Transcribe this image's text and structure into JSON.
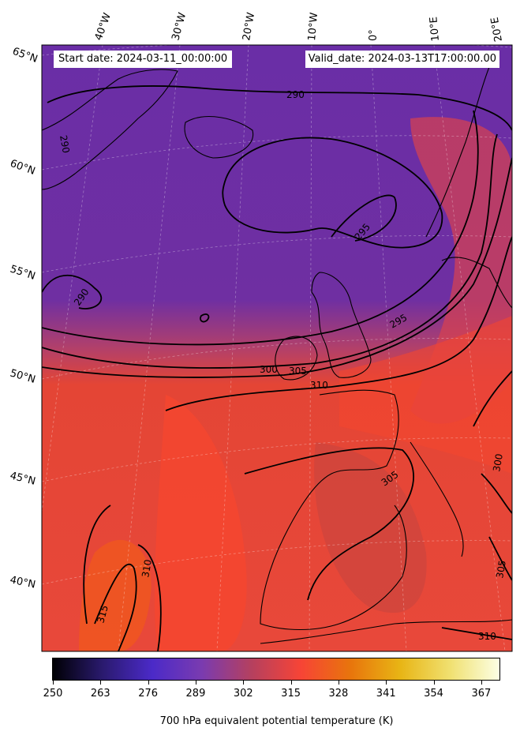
{
  "header": {
    "start_label": "Start date: 2024-03-11_00:00:00",
    "valid_label": "Valid_date: 2024-03-13T17:00:00.00"
  },
  "longitude_labels": [
    "40°W",
    "30°W",
    "20°W",
    "10°W",
    "0°",
    "10°E",
    "20°E"
  ],
  "latitude_labels": [
    "65°N",
    "60°N",
    "55°N",
    "50°N",
    "45°N",
    "40°N"
  ],
  "contour_labels": [
    "290",
    "290",
    "290",
    "295",
    "295",
    "300",
    "305",
    "310",
    "305",
    "300",
    "305",
    "310",
    "315",
    "310"
  ],
  "colorbar": {
    "title": "700 hPa equivalent potential temperature (K)",
    "ticks": [
      "250",
      "263",
      "276",
      "289",
      "302",
      "315",
      "328",
      "341",
      "354",
      "367"
    ],
    "colors": [
      "#000004",
      "#2a1a6e",
      "#4b2ac8",
      "#7a3bb0",
      "#b5405f",
      "#f74436",
      "#e8750c",
      "#e8b515",
      "#f0e070",
      "#fcffe4"
    ]
  },
  "palette": {
    "cold": "#6b2fa8",
    "warm": "#f04530",
    "coast": "#000000"
  }
}
